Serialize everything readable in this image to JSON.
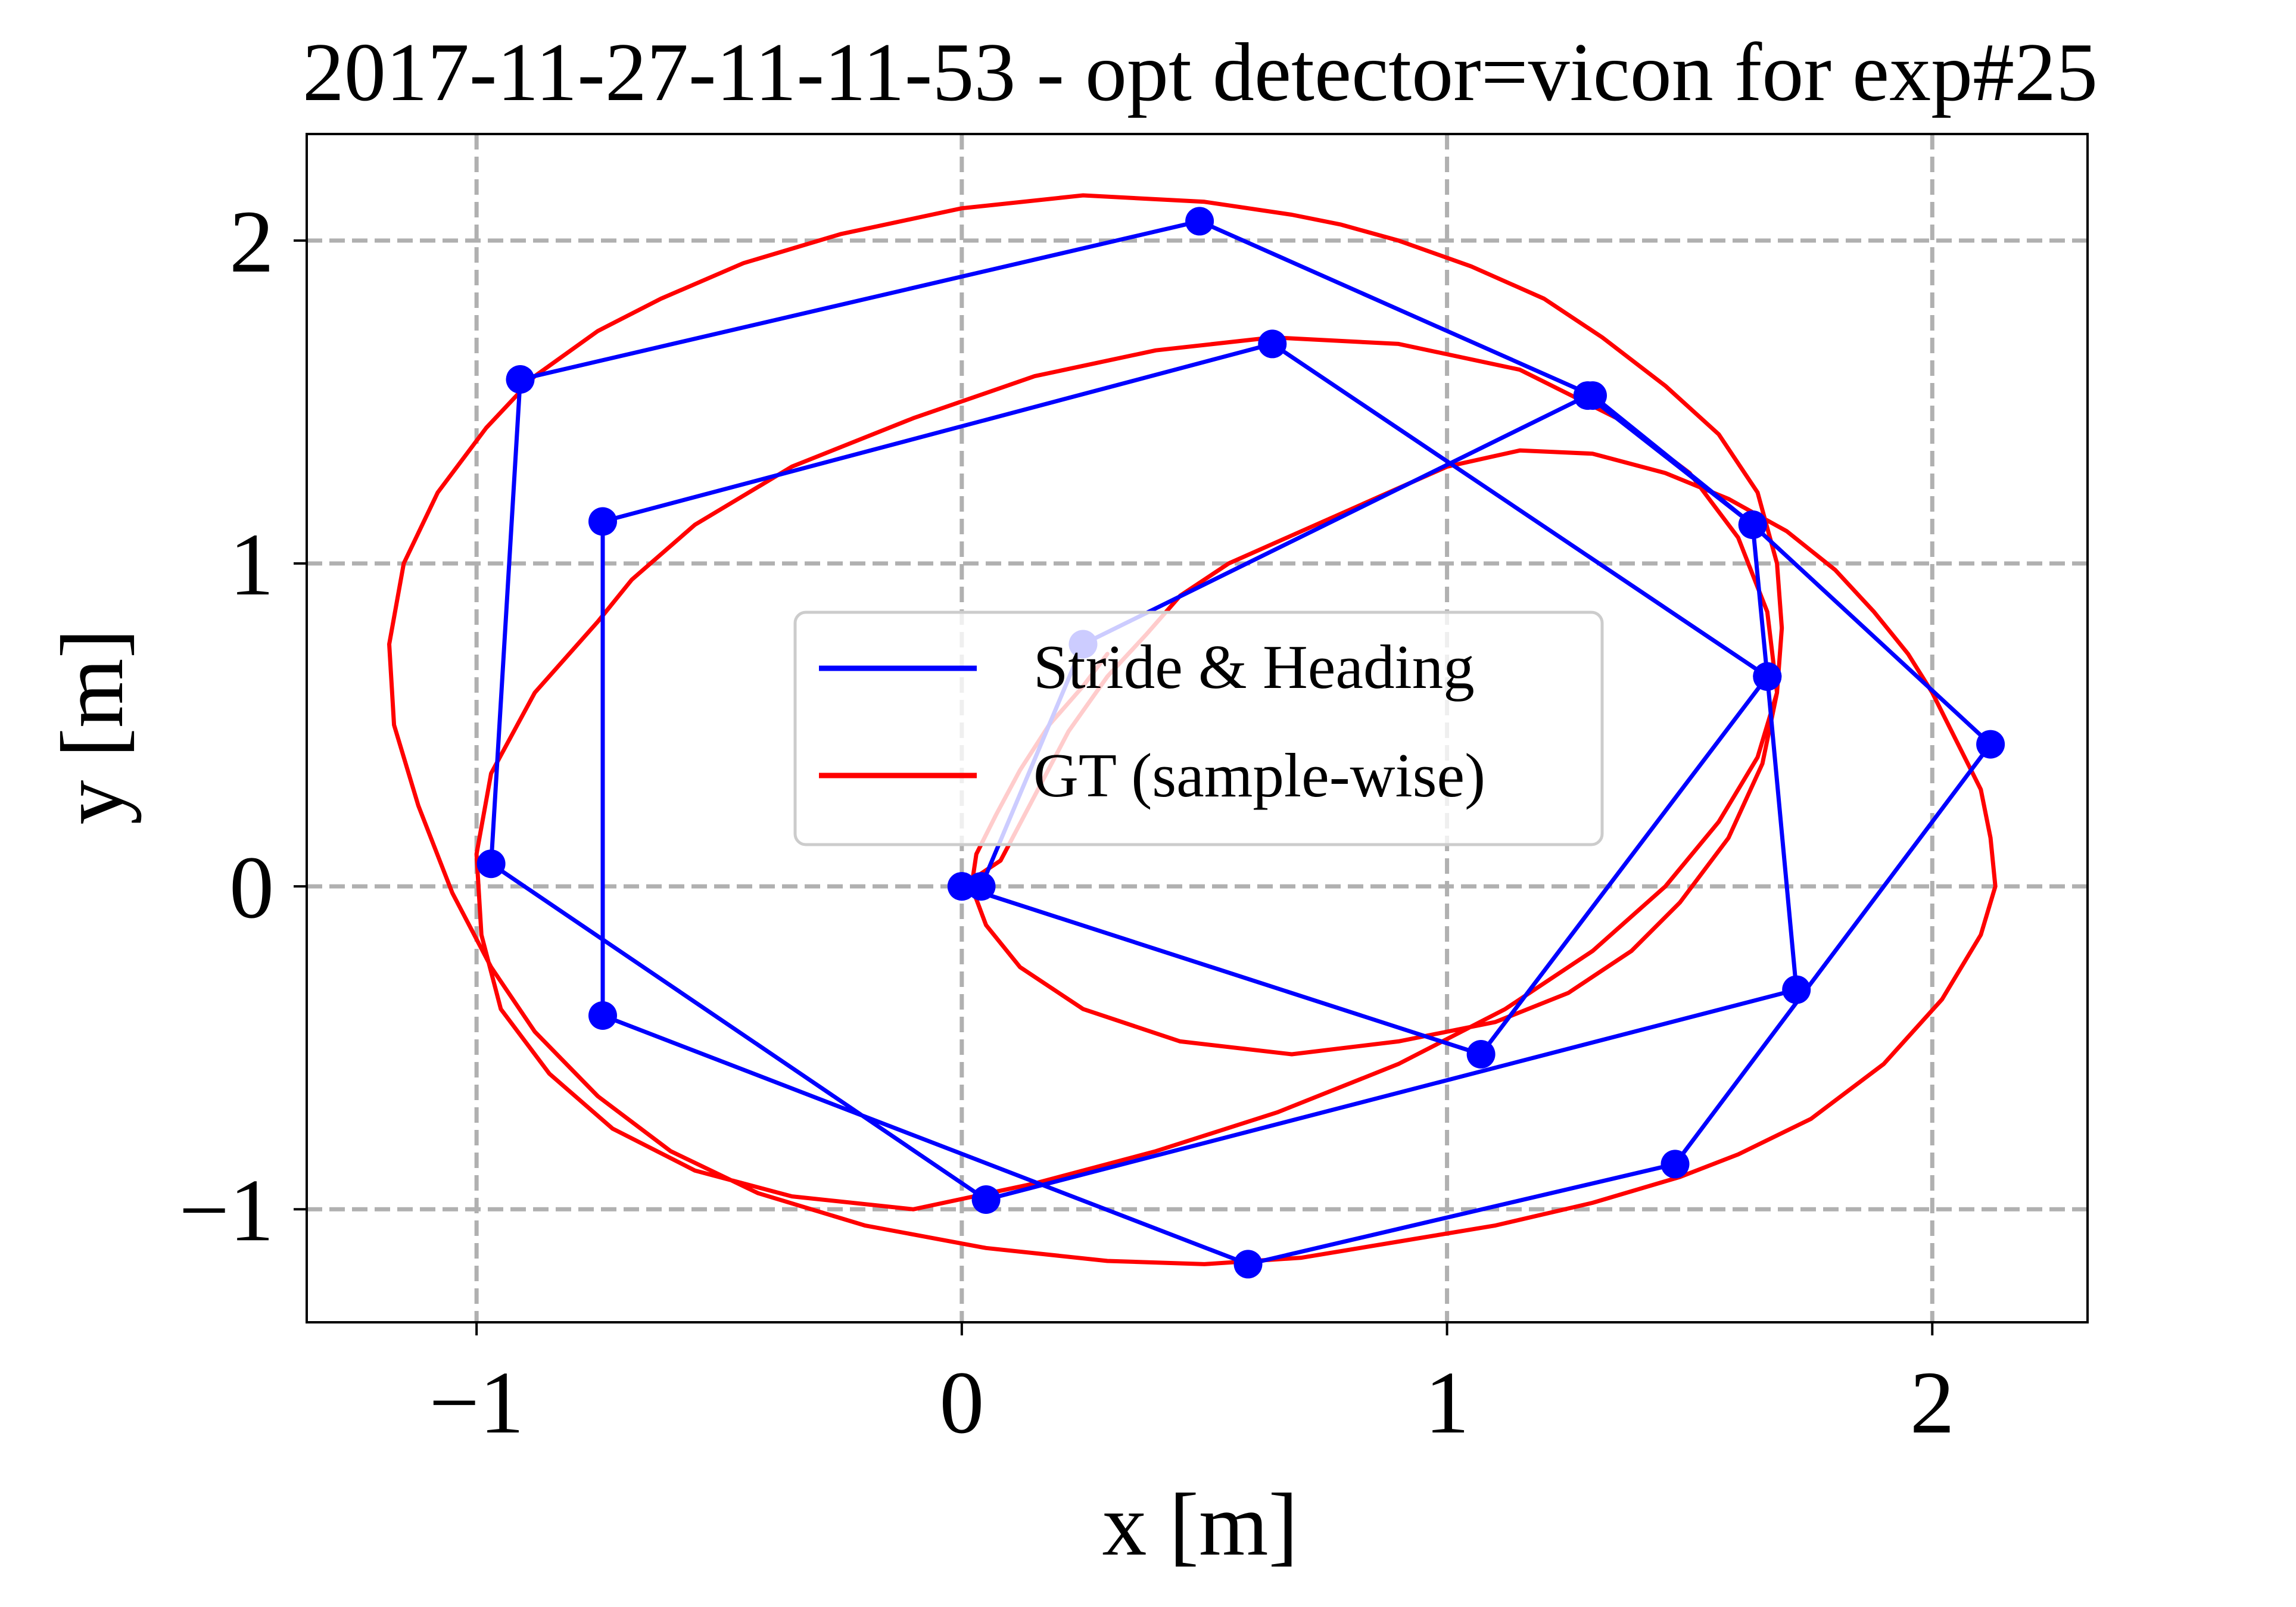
{
  "chart_data": {
    "type": "line",
    "title": "2017-11-27-11-11-53 - opt detector=vicon for exp#25",
    "xlabel": "x [m]",
    "ylabel": "y [m]",
    "xlim": [
      -1.35,
      2.32
    ],
    "ylim": [
      -1.35,
      2.33
    ],
    "xticks": [
      -1,
      0,
      1,
      2
    ],
    "yticks": [
      -1,
      0,
      1,
      2
    ],
    "xtick_labels": [
      "−1",
      "0",
      "1",
      "2"
    ],
    "ytick_labels": [
      "−1",
      "0",
      "1",
      "2"
    ],
    "grid": true,
    "legend_position": "center",
    "colors": {
      "stride": "#0000ff",
      "gt": "#ff0000",
      "grid": "#b0b0b0"
    },
    "series": [
      {
        "name": "Stride & Heading",
        "color": "#0000ff",
        "marker": "circle",
        "x": [
          0.0,
          0.04,
          0.25,
          1.29,
          1.63,
          2.12,
          1.47,
          0.59,
          -0.74,
          -0.74,
          0.64,
          1.66,
          1.72,
          0.05,
          -0.97,
          -0.91,
          0.49,
          1.3,
          1.63,
          1.66,
          1.07,
          0.0
        ],
        "y": [
          0.0,
          0.0,
          0.75,
          1.52,
          1.12,
          0.44,
          -0.86,
          -1.17,
          -0.4,
          1.13,
          1.68,
          0.65,
          -0.32,
          -0.97,
          0.07,
          1.57,
          2.06,
          1.52,
          1.12,
          0.65,
          -0.52,
          0.0
        ]
      },
      {
        "name": "GT (sample-wise)",
        "color": "#ff0000",
        "x": [
          0.0,
          0.08,
          0.15,
          0.22,
          0.3,
          0.38,
          0.45,
          0.55,
          0.7,
          0.85,
          1.0,
          1.15,
          1.3,
          1.45,
          1.58,
          1.7,
          1.8,
          1.88,
          1.95,
          2.0,
          2.05,
          2.1,
          2.12,
          2.13,
          2.1,
          2.02,
          1.9,
          1.75,
          1.6,
          1.48,
          1.3,
          1.1,
          0.9,
          0.7,
          0.5,
          0.3,
          0.05,
          -0.2,
          -0.42,
          -0.6,
          -0.75,
          -0.88,
          -0.97,
          -1.05,
          -1.12,
          -1.17,
          -1.18,
          -1.15,
          -1.08,
          -0.98,
          -0.88,
          -0.75,
          -0.62,
          -0.45,
          -0.25,
          0.0,
          0.25,
          0.5,
          0.68,
          0.78,
          0.9,
          1.05,
          1.2,
          1.32,
          1.45,
          1.56,
          1.64,
          1.68,
          1.69,
          1.68,
          1.64,
          1.56,
          1.45,
          1.3,
          1.12,
          0.9,
          0.65,
          0.4,
          0.15,
          -0.1,
          -0.35,
          -0.55,
          -0.72,
          -0.85,
          -0.95,
          -0.99,
          -1.0,
          -0.97,
          -0.88,
          -0.75,
          -0.68,
          -0.55,
          -0.35,
          -0.1,
          0.15,
          0.4,
          0.64,
          0.9,
          1.15,
          1.35,
          1.5,
          1.6,
          1.66,
          1.68,
          1.65,
          1.58,
          1.48,
          1.38,
          1.25,
          1.1,
          0.9,
          0.68,
          0.45,
          0.25,
          0.12,
          0.05,
          0.02,
          0.03,
          0.07,
          0.12,
          0.18,
          0.25,
          0.3
        ],
        "y": [
          0.0,
          0.08,
          0.28,
          0.48,
          0.65,
          0.78,
          0.9,
          1.0,
          1.1,
          1.2,
          1.3,
          1.35,
          1.34,
          1.28,
          1.2,
          1.1,
          0.98,
          0.85,
          0.72,
          0.6,
          0.45,
          0.3,
          0.15,
          0.0,
          -0.15,
          -0.35,
          -0.55,
          -0.72,
          -0.83,
          -0.9,
          -0.98,
          -1.05,
          -1.1,
          -1.15,
          -1.17,
          -1.16,
          -1.12,
          -1.05,
          -0.95,
          -0.82,
          -0.65,
          -0.45,
          -0.25,
          -0.02,
          0.25,
          0.5,
          0.75,
          1.0,
          1.22,
          1.42,
          1.58,
          1.72,
          1.82,
          1.93,
          2.02,
          2.1,
          2.14,
          2.12,
          2.08,
          2.05,
          2.0,
          1.92,
          1.82,
          1.7,
          1.55,
          1.4,
          1.22,
          1.0,
          0.8,
          0.6,
          0.4,
          0.2,
          0.0,
          -0.2,
          -0.38,
          -0.55,
          -0.7,
          -0.82,
          -0.92,
          -1.0,
          -0.96,
          -0.88,
          -0.75,
          -0.58,
          -0.38,
          -0.15,
          0.1,
          0.35,
          0.6,
          0.82,
          0.95,
          1.12,
          1.3,
          1.45,
          1.58,
          1.66,
          1.7,
          1.68,
          1.6,
          1.45,
          1.28,
          1.08,
          0.85,
          0.6,
          0.38,
          0.15,
          -0.05,
          -0.2,
          -0.33,
          -0.42,
          -0.48,
          -0.52,
          -0.48,
          -0.38,
          -0.25,
          -0.12,
          0.0,
          0.1,
          0.22,
          0.36,
          0.5,
          0.62,
          0.72
        ]
      }
    ]
  }
}
